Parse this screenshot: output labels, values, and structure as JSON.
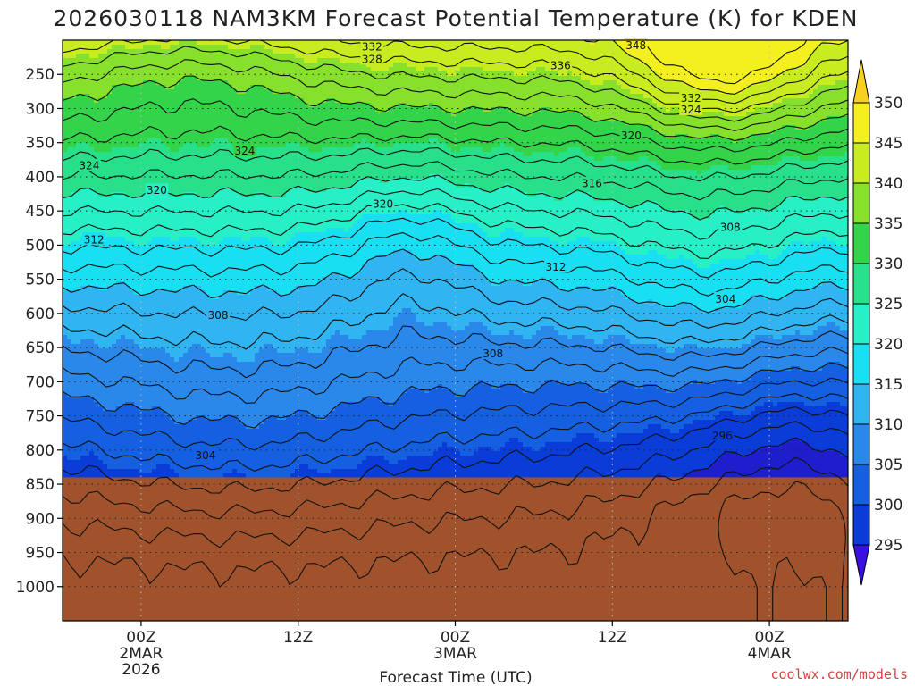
{
  "chart_data": {
    "type": "heatmap",
    "title": "2026030118 NAM3KM Forecast Potential Temperature (K) for KDEN",
    "xlabel": "Forecast Time (UTC)",
    "ylabel": "",
    "x_range_hours": [
      -5,
      45
    ],
    "y_range_hpa": [
      200,
      1050
    ],
    "y_ticks": [
      250,
      300,
      350,
      400,
      450,
      500,
      550,
      600,
      650,
      700,
      750,
      800,
      850,
      900,
      950,
      1000
    ],
    "x_ticks": [
      {
        "hour": 0,
        "lines": [
          "00Z",
          "2MAR",
          "2026"
        ]
      },
      {
        "hour": 10,
        "lines": [
          "12Z"
        ]
      },
      {
        "hour": 20,
        "lines": [
          "00Z",
          "3MAR"
        ]
      },
      {
        "hour": 30,
        "lines": [
          "12Z"
        ]
      },
      {
        "hour": 40,
        "lines": [
          "00Z",
          "4MAR"
        ]
      }
    ],
    "ground_level_hpa": 840,
    "colorbar": {
      "levels": [
        295,
        300,
        305,
        310,
        315,
        320,
        325,
        330,
        335,
        340,
        345,
        350
      ],
      "colors": [
        "#1e1ecc",
        "#0a3cd8",
        "#1460e0",
        "#2a88ea",
        "#30b4f2",
        "#18e0f2",
        "#28f0c6",
        "#28e08a",
        "#34d44a",
        "#86e02c",
        "#c8ec20",
        "#f4f020"
      ],
      "under_color": "#3a10e0",
      "over_color": "#f8d020"
    },
    "surface_color": "#a0522d",
    "contour_interval_k": 2,
    "contour_labels": [
      {
        "value": 348,
        "hour": 31.5,
        "hpa": 208
      },
      {
        "value": 336,
        "hour": 26.7,
        "hpa": 237
      },
      {
        "value": 332,
        "hour": 14.7,
        "hpa": 210
      },
      {
        "value": 328,
        "hour": 14.7,
        "hpa": 228
      },
      {
        "value": 332,
        "hour": 35,
        "hpa": 285
      },
      {
        "value": 324,
        "hour": 35,
        "hpa": 302
      },
      {
        "value": 320,
        "hour": 31.2,
        "hpa": 340
      },
      {
        "value": 324,
        "hour": 6.6,
        "hpa": 362
      },
      {
        "value": 324,
        "hour": -3.3,
        "hpa": 384
      },
      {
        "value": 320,
        "hour": 1,
        "hpa": 420
      },
      {
        "value": 320,
        "hour": 15.4,
        "hpa": 440
      },
      {
        "value": 316,
        "hour": 28.7,
        "hpa": 410
      },
      {
        "value": 312,
        "hour": -3,
        "hpa": 492
      },
      {
        "value": 308,
        "hour": 37.5,
        "hpa": 474
      },
      {
        "value": 312,
        "hour": 26.4,
        "hpa": 532
      },
      {
        "value": 304,
        "hour": 37.2,
        "hpa": 579
      },
      {
        "value": 308,
        "hour": 4.9,
        "hpa": 603
      },
      {
        "value": 308,
        "hour": 22.4,
        "hpa": 659
      },
      {
        "value": 296,
        "hour": 37,
        "hpa": 779
      },
      {
        "value": 304,
        "hour": 4.1,
        "hpa": 808
      }
    ]
  },
  "watermark": "coolwx.com/models"
}
